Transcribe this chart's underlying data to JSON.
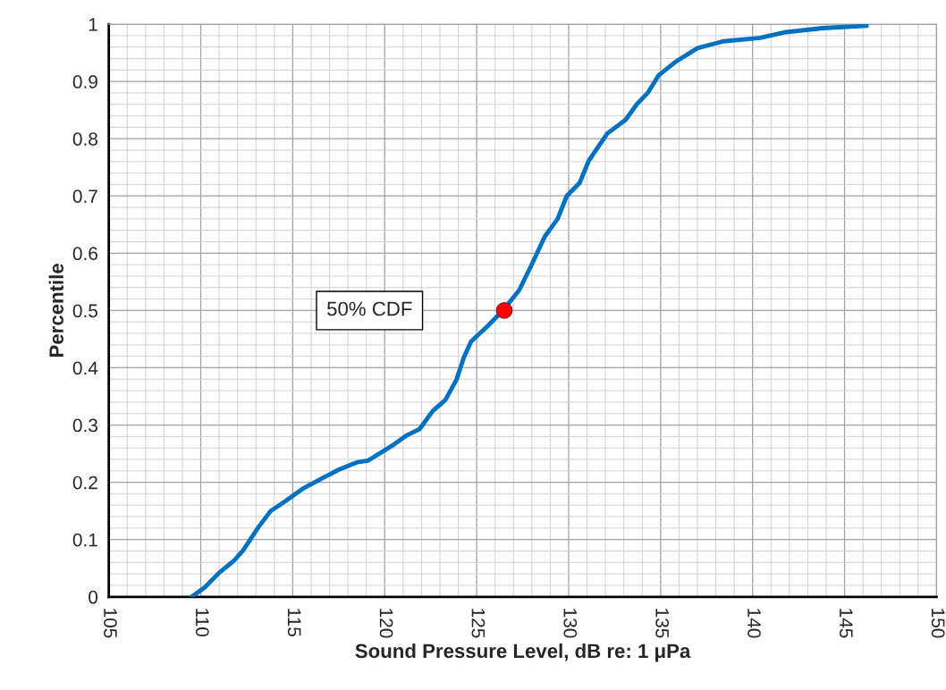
{
  "chart_data": {
    "type": "line",
    "xlabel": "Sound Pressure Level, dB re: 1 μPa",
    "ylabel": "Percentile",
    "xlim": [
      105,
      150
    ],
    "xticks": [
      105,
      110,
      115,
      120,
      125,
      130,
      135,
      140,
      145,
      150
    ],
    "ylim": [
      0,
      1
    ],
    "yticks": [
      0,
      0.1,
      0.2,
      0.3,
      0.4,
      0.5,
      0.6,
      0.7,
      0.8,
      0.9,
      1
    ],
    "grid": true,
    "legend": false,
    "series": [
      {
        "color": "#0070c0",
        "marker": "none",
        "x": [
          109.5,
          110.2,
          111.0,
          111.8,
          112.3,
          113.1,
          113.8,
          114.6,
          115.6,
          116.6,
          117.5,
          118.5,
          119.1,
          119.7,
          120.5,
          121.2,
          121.9,
          122.6,
          123.3,
          123.9,
          124.3,
          124.7,
          125.6,
          126.4,
          127.3,
          127.9,
          128.7,
          129.4,
          129.9,
          130.6,
          131.1,
          132.1,
          133.1,
          133.7,
          134.3,
          134.9,
          135.8,
          137.0,
          138.4,
          140.4,
          141.8,
          143.8,
          146.2
        ],
        "values": [
          0,
          0.016,
          0.042,
          0.063,
          0.081,
          0.12,
          0.15,
          0.167,
          0.19,
          0.207,
          0.222,
          0.235,
          0.238,
          0.25,
          0.266,
          0.282,
          0.293,
          0.324,
          0.344,
          0.379,
          0.418,
          0.446,
          0.473,
          0.499,
          0.535,
          0.574,
          0.629,
          0.66,
          0.7,
          0.723,
          0.762,
          0.809,
          0.833,
          0.86,
          0.88,
          0.911,
          0.934,
          0.958,
          0.97,
          0.976,
          0.986,
          0.993,
          0.997
        ]
      },
      {
        "type": "scatter",
        "color": "#ff0000",
        "marker": "circle",
        "x": [
          126.5
        ],
        "values": [
          0.5
        ]
      }
    ],
    "annotations": [
      "50% CDF"
    ]
  }
}
